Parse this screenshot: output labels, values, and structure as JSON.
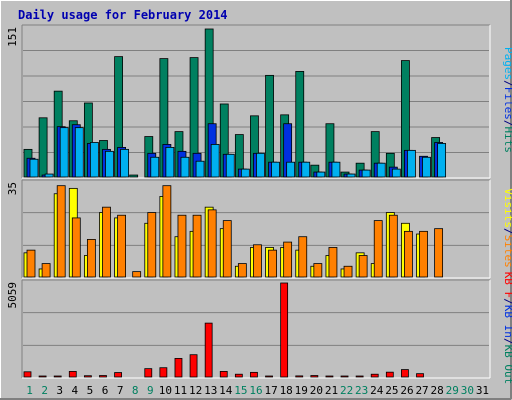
{
  "chart_data": [
    {
      "type": "bar",
      "title": "Daily usage for February 2014",
      "ylabel_max": "151",
      "legend": [
        {
          "label": "Pages",
          "color": "#00b0f0"
        },
        {
          "label": "/",
          "color": "#000080"
        },
        {
          "label": "Files",
          "color": "#0030e0"
        },
        {
          "label": "/",
          "color": "#000080"
        },
        {
          "label": "Hits",
          "color": "#008060"
        }
      ],
      "categories": [
        "1",
        "2",
        "3",
        "4",
        "5",
        "6",
        "7",
        "8",
        "9",
        "10",
        "11",
        "12",
        "13",
        "14",
        "15",
        "16",
        "17",
        "18",
        "19",
        "20",
        "21",
        "22",
        "23",
        "24",
        "25",
        "26",
        "27",
        "28",
        "29",
        "30",
        "31"
      ],
      "weekend_days": [
        "1",
        "2",
        "8",
        "9",
        "15",
        "16",
        "22",
        "23",
        "29",
        "30"
      ],
      "ylim": [
        0,
        151
      ],
      "series": [
        {
          "name": "Hits",
          "color": "#008060",
          "values": [
            28,
            60,
            87,
            57,
            75,
            37,
            122,
            2,
            41,
            120,
            46,
            121,
            150,
            74,
            43,
            62,
            103,
            63,
            107,
            12,
            54,
            5,
            14,
            46,
            24,
            118,
            0,
            40,
            0,
            0,
            0
          ]
        },
        {
          "name": "Files",
          "color": "#0030e0",
          "values": [
            19,
            2,
            51,
            53,
            34,
            28,
            30,
            0,
            24,
            33,
            26,
            24,
            54,
            23,
            8,
            24,
            15,
            54,
            15,
            5,
            15,
            3,
            7,
            14,
            10,
            27,
            21,
            35,
            0,
            0,
            0
          ]
        },
        {
          "name": "Pages",
          "color": "#00b0f0",
          "values": [
            18,
            3,
            50,
            50,
            35,
            26,
            28,
            0,
            20,
            30,
            20,
            16,
            33,
            23,
            8,
            24,
            15,
            15,
            15,
            5,
            15,
            3,
            7,
            14,
            8,
            27,
            20,
            34,
            0,
            0,
            0
          ]
        }
      ]
    },
    {
      "type": "bar",
      "ylabel_max": "35",
      "legend": [
        {
          "label": "Visits",
          "color": "#ffff00"
        },
        {
          "label": "/",
          "color": "#000080"
        },
        {
          "label": "Sites",
          "color": "#ff8000"
        }
      ],
      "ylim": [
        0,
        35
      ],
      "series": [
        {
          "name": "Visits",
          "color": "#ffff00",
          "values": [
            9,
            3,
            31,
            33,
            8,
            24,
            22,
            0,
            20,
            30,
            15,
            17,
            26,
            18,
            4,
            11,
            11,
            11,
            10,
            4,
            8,
            3,
            9,
            5,
            24,
            20,
            16,
            0,
            0,
            0,
            0
          ]
        },
        {
          "name": "Sites",
          "color": "#ff8000",
          "values": [
            10,
            5,
            34,
            22,
            14,
            26,
            23,
            2,
            24,
            34,
            23,
            23,
            25,
            21,
            5,
            12,
            10,
            13,
            15,
            5,
            11,
            4,
            8,
            21,
            23,
            17,
            17,
            18,
            0,
            0,
            0
          ]
        }
      ]
    },
    {
      "type": "bar",
      "ylabel_max": "5059",
      "legend": [
        {
          "label": "KB F",
          "color": "#ff0000"
        },
        {
          "label": "/",
          "color": "#000080"
        },
        {
          "label": "KB In",
          "color": "#0030e0"
        },
        {
          "label": "/",
          "color": "#000080"
        },
        {
          "label": "KB Out",
          "color": "#008060"
        }
      ],
      "ylim": [
        0,
        5059
      ],
      "series": [
        {
          "name": "KB F",
          "color": "#ff0000",
          "values": [
            280,
            40,
            30,
            300,
            70,
            80,
            240,
            0,
            450,
            500,
            1000,
            1200,
            2900,
            300,
            150,
            250,
            30,
            5059,
            60,
            80,
            40,
            30,
            40,
            150,
            260,
            400,
            180,
            0,
            0,
            0,
            0
          ]
        }
      ]
    }
  ]
}
